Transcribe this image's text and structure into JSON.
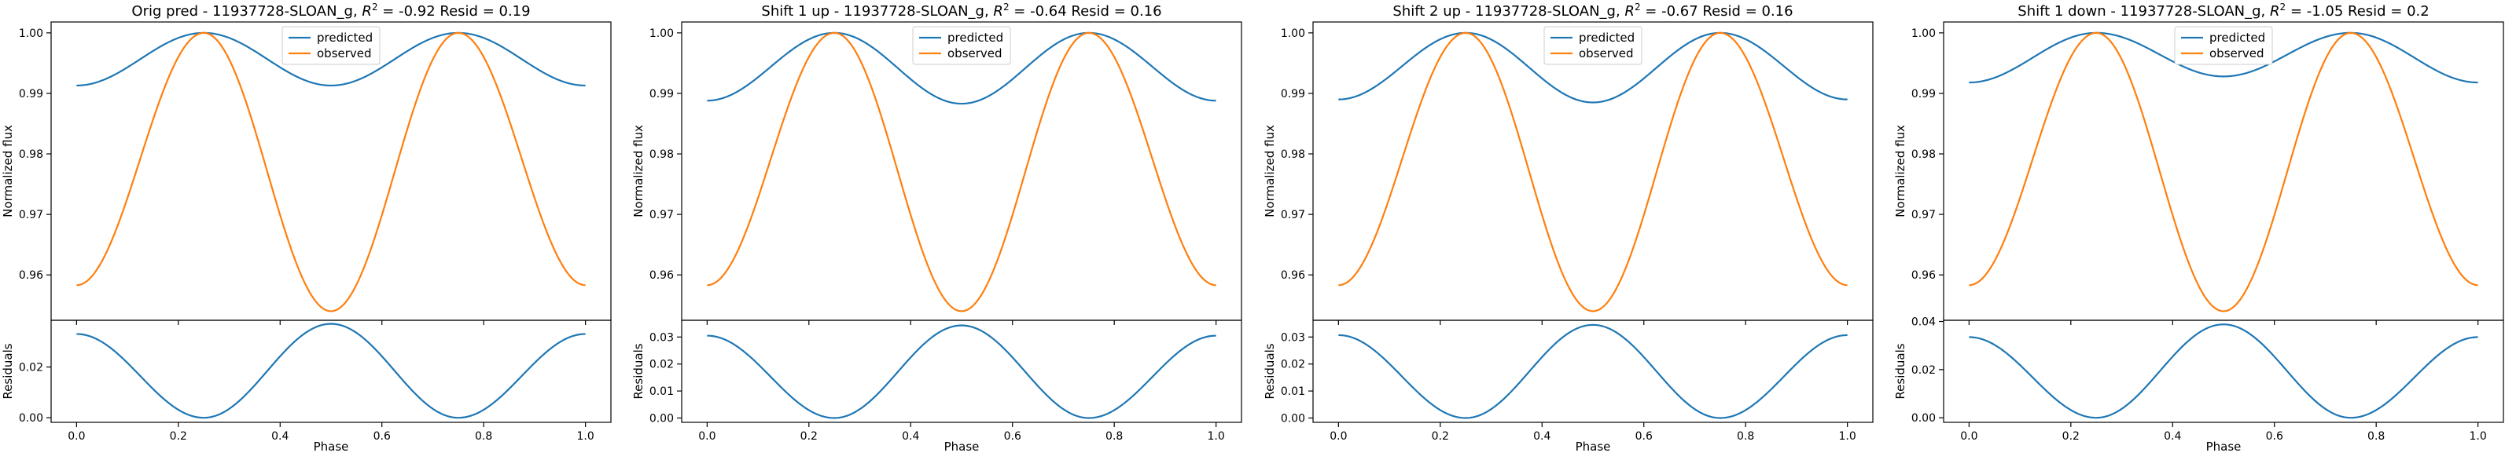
{
  "chart_data": [
    {
      "type": "line",
      "title_prefix": "Orig pred - 11937728-SLOAN_g, ",
      "title_suffix": " = -0.92 Resid = 0.19",
      "r2_symbol": "R",
      "r2_exp": "2",
      "ylabel_top": "Normalized flux",
      "ylabel_bottom": "Residuals",
      "xlabel": "Phase",
      "xlim": [
        -0.05,
        1.05
      ],
      "top_ylim": [
        0.9525,
        1.0018
      ],
      "top_yticks": [
        "0.96",
        "0.97",
        "0.98",
        "0.99",
        "1.00"
      ],
      "top_ytick_values": [
        0.96,
        0.97,
        0.98,
        0.99,
        1.0
      ],
      "bottom_ylim": [
        -0.0018,
        0.0384
      ],
      "bottom_yticks": [
        "0.00",
        "0.02"
      ],
      "bottom_ytick_values": [
        0.0,
        0.02
      ],
      "xticks": [
        "0.0",
        "0.2",
        "0.4",
        "0.6",
        "0.8",
        "1.0"
      ],
      "xtick_values": [
        0.0,
        0.2,
        0.4,
        0.6,
        0.8,
        1.0
      ],
      "legend": [
        "predicted",
        "observed"
      ],
      "colors": {
        "predicted": "#1f77b4",
        "observed": "#ff7f0e"
      },
      "predicted": {
        "x": [
          0.0,
          0.25,
          0.5,
          0.75,
          1.0
        ],
        "y": [
          0.9913,
          1.0,
          0.9913,
          1.0,
          0.9913
        ]
      },
      "observed": {
        "x": [
          0.0,
          0.25,
          0.5,
          0.75,
          1.0
        ],
        "y": [
          0.9583,
          1.0,
          0.954,
          1.0,
          0.9583
        ]
      },
      "residuals": {
        "x": [
          0.0,
          0.25,
          0.5,
          0.75,
          1.0
        ],
        "y": [
          0.033,
          0.0,
          0.037,
          0.0,
          0.033
        ]
      }
    },
    {
      "type": "line",
      "title_prefix": "Shift 1 up - 11937728-SLOAN_g, ",
      "title_suffix": " = -0.64 Resid = 0.16",
      "r2_symbol": "R",
      "r2_exp": "2",
      "ylabel_top": "Normalized flux",
      "ylabel_bottom": "Residuals",
      "xlabel": "Phase",
      "xlim": [
        -0.05,
        1.05
      ],
      "top_ylim": [
        0.9525,
        1.0018
      ],
      "top_yticks": [
        "0.96",
        "0.97",
        "0.98",
        "0.99",
        "1.00"
      ],
      "top_ytick_values": [
        0.96,
        0.97,
        0.98,
        0.99,
        1.0
      ],
      "bottom_ylim": [
        -0.0016,
        0.0362
      ],
      "bottom_yticks": [
        "0.00",
        "0.01",
        "0.02",
        "0.03"
      ],
      "bottom_ytick_values": [
        0.0,
        0.01,
        0.02,
        0.03
      ],
      "xticks": [
        "0.0",
        "0.2",
        "0.4",
        "0.6",
        "0.8",
        "1.0"
      ],
      "xtick_values": [
        0.0,
        0.2,
        0.4,
        0.6,
        0.8,
        1.0
      ],
      "legend": [
        "predicted",
        "observed"
      ],
      "colors": {
        "predicted": "#1f77b4",
        "observed": "#ff7f0e"
      },
      "predicted": {
        "x": [
          0.0,
          0.25,
          0.5,
          0.75,
          1.0
        ],
        "y": [
          0.9888,
          1.0,
          0.9883,
          1.0,
          0.9888
        ]
      },
      "observed": {
        "x": [
          0.0,
          0.25,
          0.5,
          0.75,
          1.0
        ],
        "y": [
          0.9583,
          1.0,
          0.954,
          1.0,
          0.9583
        ]
      },
      "residuals": {
        "x": [
          0.0,
          0.25,
          0.5,
          0.75,
          1.0
        ],
        "y": [
          0.0305,
          0.0,
          0.0343,
          0.0,
          0.0305
        ]
      }
    },
    {
      "type": "line",
      "title_prefix": "Shift 2 up - 11937728-SLOAN_g, ",
      "title_suffix": " = -0.67 Resid = 0.16",
      "r2_symbol": "R",
      "r2_exp": "2",
      "ylabel_top": "Normalized flux",
      "ylabel_bottom": "Residuals",
      "xlabel": "Phase",
      "xlim": [
        -0.05,
        1.05
      ],
      "top_ylim": [
        0.9525,
        1.0018
      ],
      "top_yticks": [
        "0.96",
        "0.97",
        "0.98",
        "0.99",
        "1.00"
      ],
      "top_ytick_values": [
        0.96,
        0.97,
        0.98,
        0.99,
        1.0
      ],
      "bottom_ylim": [
        -0.0016,
        0.0362
      ],
      "bottom_yticks": [
        "0.00",
        "0.01",
        "0.02",
        "0.03"
      ],
      "bottom_ytick_values": [
        0.0,
        0.01,
        0.02,
        0.03
      ],
      "xticks": [
        "0.0",
        "0.2",
        "0.4",
        "0.6",
        "0.8",
        "1.0"
      ],
      "xtick_values": [
        0.0,
        0.2,
        0.4,
        0.6,
        0.8,
        1.0
      ],
      "legend": [
        "predicted",
        "observed"
      ],
      "colors": {
        "predicted": "#1f77b4",
        "observed": "#ff7f0e"
      },
      "predicted": {
        "x": [
          0.0,
          0.25,
          0.5,
          0.75,
          1.0
        ],
        "y": [
          0.989,
          1.0,
          0.9885,
          1.0,
          0.989
        ]
      },
      "observed": {
        "x": [
          0.0,
          0.25,
          0.5,
          0.75,
          1.0
        ],
        "y": [
          0.9583,
          1.0,
          0.954,
          1.0,
          0.9583
        ]
      },
      "residuals": {
        "x": [
          0.0,
          0.25,
          0.5,
          0.75,
          1.0
        ],
        "y": [
          0.0307,
          0.0,
          0.0345,
          0.0,
          0.0307
        ]
      }
    },
    {
      "type": "line",
      "title_prefix": "Shift 1 down - 11937728-SLOAN_g, ",
      "title_suffix": " = -1.05 Resid = 0.2",
      "r2_symbol": "R",
      "r2_exp": "2",
      "ylabel_top": "Normalized flux",
      "ylabel_bottom": "Residuals",
      "xlabel": "Phase",
      "xlim": [
        -0.05,
        1.05
      ],
      "top_ylim": [
        0.9525,
        1.0018
      ],
      "top_yticks": [
        "0.96",
        "0.97",
        "0.98",
        "0.99",
        "1.00"
      ],
      "top_ytick_values": [
        0.96,
        0.97,
        0.98,
        0.99,
        1.0
      ],
      "bottom_ylim": [
        -0.0019,
        0.0405
      ],
      "bottom_yticks": [
        "0.00",
        "0.02",
        "0.04"
      ],
      "bottom_ytick_values": [
        0.0,
        0.02,
        0.04
      ],
      "xticks": [
        "0.0",
        "0.2",
        "0.4",
        "0.6",
        "0.8",
        "1.0"
      ],
      "xtick_values": [
        0.0,
        0.2,
        0.4,
        0.6,
        0.8,
        1.0
      ],
      "legend": [
        "predicted",
        "observed"
      ],
      "colors": {
        "predicted": "#1f77b4",
        "observed": "#ff7f0e"
      },
      "predicted": {
        "x": [
          0.0,
          0.25,
          0.5,
          0.75,
          1.0
        ],
        "y": [
          0.9918,
          1.0,
          0.9928,
          1.0,
          0.9918
        ]
      },
      "observed": {
        "x": [
          0.0,
          0.25,
          0.5,
          0.75,
          1.0
        ],
        "y": [
          0.9583,
          1.0,
          0.954,
          1.0,
          0.9583
        ]
      },
      "residuals": {
        "x": [
          0.0,
          0.25,
          0.5,
          0.75,
          1.0
        ],
        "y": [
          0.0335,
          0.0,
          0.0388,
          0.0,
          0.0335
        ]
      }
    }
  ]
}
